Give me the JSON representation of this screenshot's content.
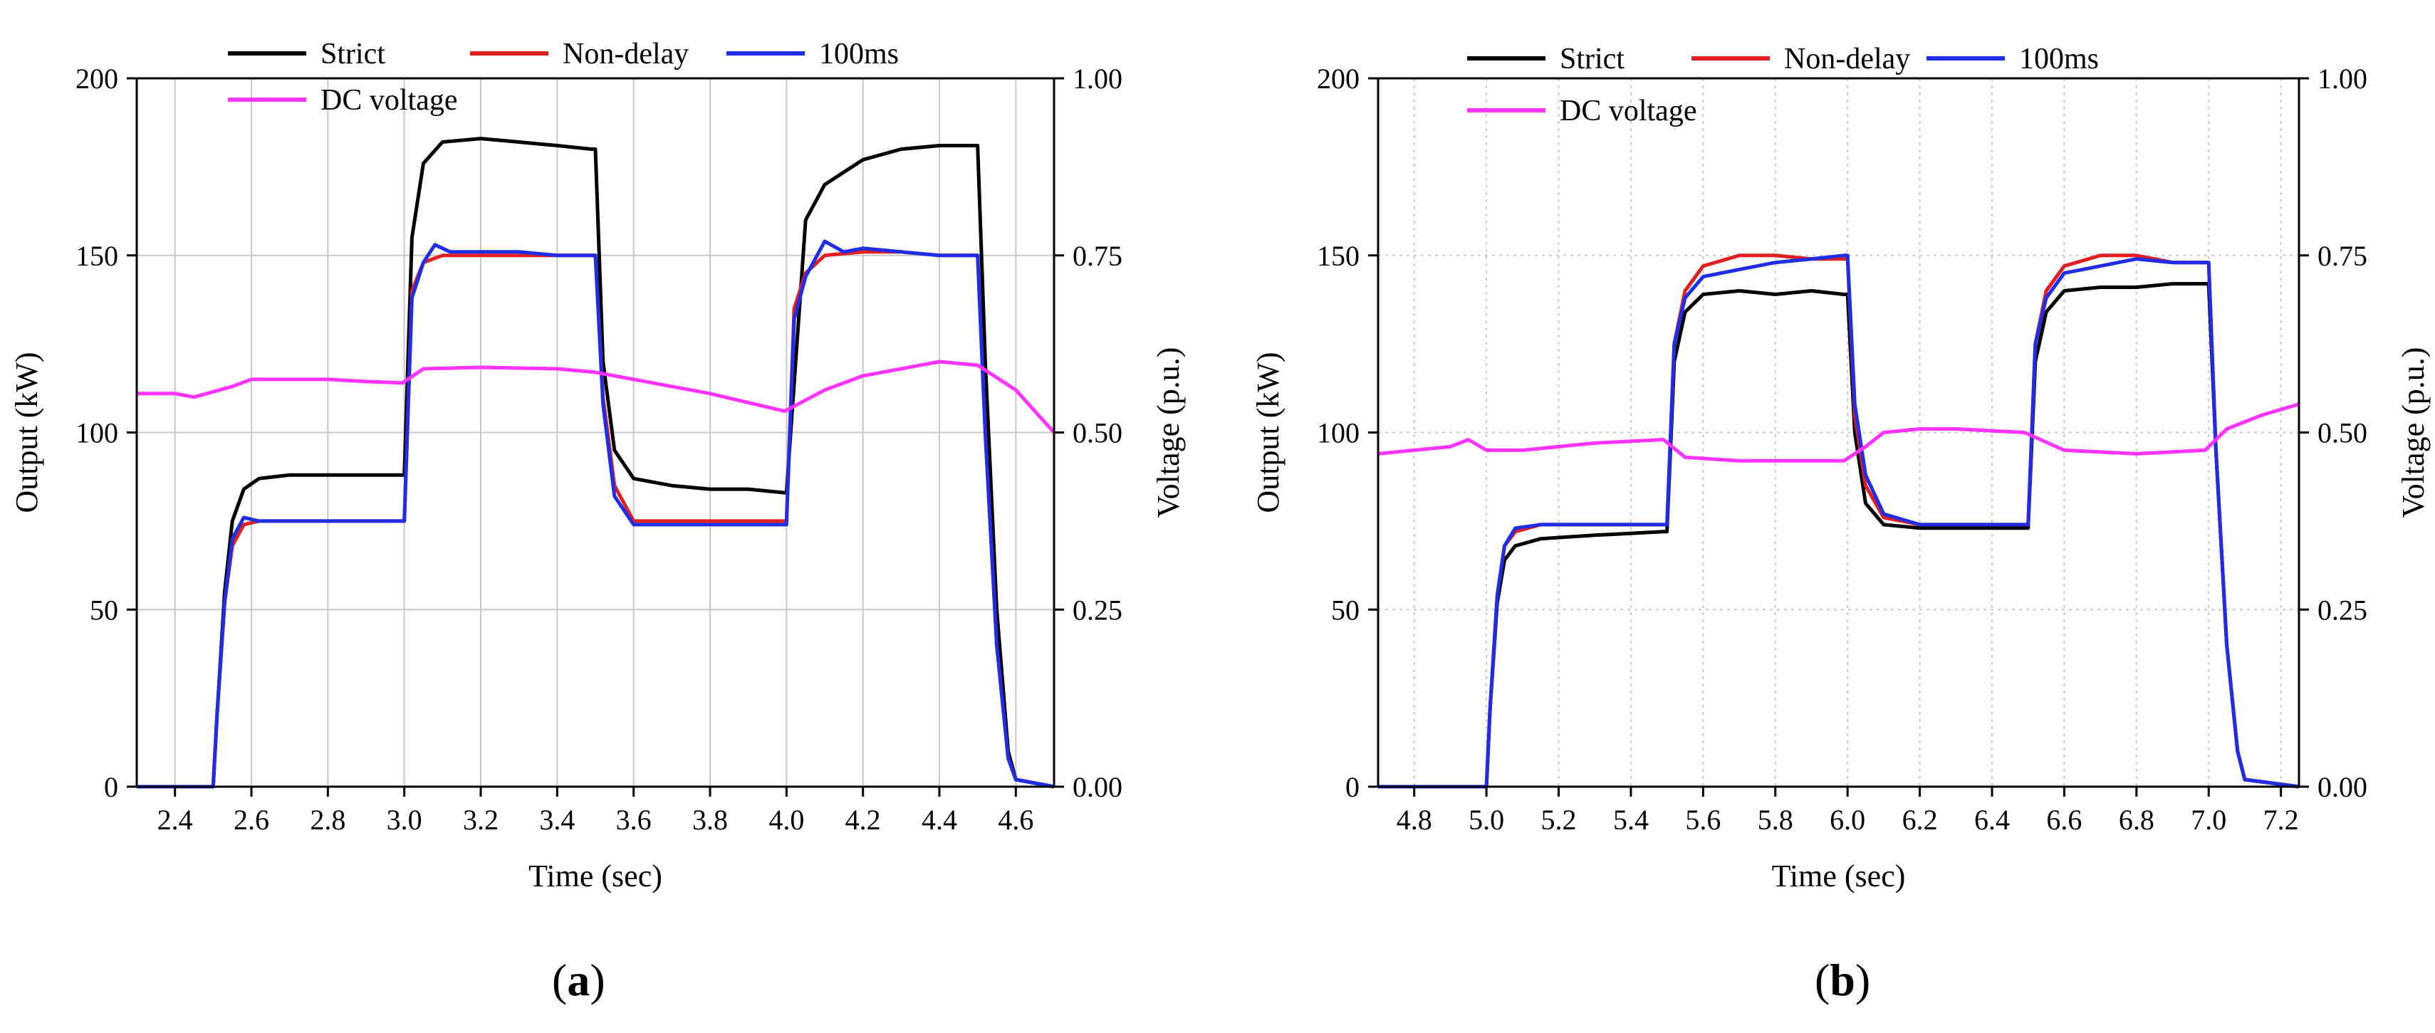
{
  "chart_data": [
    {
      "panel_label": "a",
      "type": "line",
      "xlabel": "Time (sec)",
      "ylabel": "Output (kW)",
      "ylabel_right": "Voltage (p.u.)",
      "xlim": [
        2.3,
        4.7
      ],
      "ylim": [
        0,
        200
      ],
      "ylim_right": [
        0,
        1.0
      ],
      "xticks": [
        2.4,
        2.6,
        2.8,
        3.0,
        3.2,
        3.4,
        3.6,
        3.8,
        4.0,
        4.2,
        4.4,
        4.6
      ],
      "xtick_labels": [
        "2.4",
        "2.6",
        "2.8",
        "3.0",
        "3.2",
        "3.4",
        "3.6",
        "3.8",
        "4.0",
        "4.2",
        "4.4",
        "4.6"
      ],
      "yticks": [
        0,
        50,
        100,
        150,
        200
      ],
      "ytick_labels": [
        "0",
        "50",
        "100",
        "150",
        "200"
      ],
      "yticks_right": [
        0,
        0.25,
        0.5,
        0.75,
        1.0
      ],
      "ytick_labels_right": [
        "0.00",
        "0.25",
        "0.50",
        "0.75",
        "1.00"
      ],
      "grid": "solid",
      "legend": [
        "Strict",
        "Non-delay",
        "100ms",
        "DC voltage"
      ],
      "series": [
        {
          "name": "Strict",
          "color": "#000000",
          "axis": "left",
          "x": [
            2.3,
            2.5,
            2.51,
            2.53,
            2.55,
            2.58,
            2.62,
            2.7,
            2.8,
            2.9,
            2.995,
            3.0,
            3.02,
            3.05,
            3.1,
            3.2,
            3.3,
            3.4,
            3.49,
            3.5,
            3.52,
            3.55,
            3.6,
            3.7,
            3.8,
            3.9,
            3.995,
            4.0,
            4.05,
            4.1,
            4.2,
            4.3,
            4.4,
            4.49,
            4.5,
            4.52,
            4.55,
            4.58,
            4.6,
            4.7
          ],
          "y": [
            0,
            0,
            20,
            55,
            75,
            84,
            87,
            88,
            88,
            88,
            88,
            88,
            155,
            176,
            182,
            183,
            182,
            181,
            180,
            180,
            120,
            95,
            87,
            85,
            84,
            84,
            83,
            83,
            160,
            170,
            177,
            180,
            181,
            181,
            181,
            120,
            50,
            10,
            2,
            0
          ]
        },
        {
          "name": "Non-delay",
          "color": "#e02020",
          "axis": "left",
          "x": [
            2.3,
            2.5,
            2.51,
            2.53,
            2.55,
            2.58,
            2.62,
            2.7,
            2.8,
            2.9,
            2.995,
            3.0,
            3.02,
            3.05,
            3.1,
            3.2,
            3.3,
            3.4,
            3.49,
            3.5,
            3.52,
            3.55,
            3.6,
            3.7,
            3.8,
            3.9,
            3.995,
            4.0,
            4.02,
            4.05,
            4.1,
            4.2,
            4.3,
            4.4,
            4.49,
            4.5,
            4.52,
            4.55,
            4.58,
            4.6,
            4.7
          ],
          "y": [
            0,
            0,
            20,
            52,
            68,
            74,
            75,
            75,
            75,
            75,
            75,
            75,
            140,
            148,
            150,
            150,
            150,
            150,
            150,
            150,
            110,
            85,
            75,
            75,
            75,
            75,
            75,
            75,
            135,
            145,
            150,
            151,
            151,
            150,
            150,
            150,
            100,
            40,
            8,
            2,
            0
          ]
        },
        {
          "name": "100ms",
          "color": "#1f2ee6",
          "axis": "left",
          "x": [
            2.3,
            2.5,
            2.51,
            2.53,
            2.55,
            2.58,
            2.62,
            2.7,
            2.8,
            2.9,
            2.995,
            3.0,
            3.02,
            3.05,
            3.08,
            3.12,
            3.2,
            3.3,
            3.4,
            3.49,
            3.5,
            3.52,
            3.55,
            3.6,
            3.7,
            3.8,
            3.9,
            3.995,
            4.0,
            4.02,
            4.05,
            4.1,
            4.15,
            4.2,
            4.3,
            4.4,
            4.49,
            4.5,
            4.52,
            4.55,
            4.58,
            4.6,
            4.7
          ],
          "y": [
            0,
            0,
            20,
            52,
            70,
            76,
            75,
            75,
            75,
            75,
            75,
            75,
            138,
            148,
            153,
            151,
            151,
            151,
            150,
            150,
            150,
            108,
            82,
            74,
            74,
            74,
            74,
            74,
            74,
            132,
            144,
            154,
            151,
            152,
            151,
            150,
            150,
            150,
            100,
            40,
            8,
            2,
            0
          ]
        },
        {
          "name": "DC voltage",
          "color": "#ff33ff",
          "axis": "right",
          "x": [
            2.3,
            2.4,
            2.45,
            2.55,
            2.6,
            2.7,
            2.8,
            2.9,
            2.995,
            3.05,
            3.2,
            3.4,
            3.5,
            3.6,
            3.8,
            3.995,
            4.1,
            4.2,
            4.3,
            4.4,
            4.5,
            4.6,
            4.7
          ],
          "y": [
            0.555,
            0.555,
            0.55,
            0.565,
            0.575,
            0.575,
            0.575,
            0.572,
            0.57,
            0.59,
            0.592,
            0.59,
            0.585,
            0.575,
            0.555,
            0.53,
            0.56,
            0.58,
            0.59,
            0.6,
            0.595,
            0.56,
            0.5
          ]
        }
      ]
    },
    {
      "panel_label": "b",
      "type": "line",
      "xlabel": "Time (sec)",
      "ylabel": "Output (kW)",
      "ylabel_right": "Voltage (p.u.)",
      "xlim": [
        4.7,
        7.25
      ],
      "ylim": [
        0,
        200
      ],
      "ylim_right": [
        0,
        1.0
      ],
      "xticks": [
        4.8,
        5.0,
        5.2,
        5.4,
        5.6,
        5.8,
        6.0,
        6.2,
        6.4,
        6.6,
        6.8,
        7.0,
        7.2
      ],
      "xtick_labels": [
        "4.8",
        "5.0",
        "5.2",
        "5.4",
        "5.6",
        "5.8",
        "6.0",
        "6.2",
        "6.4",
        "6.6",
        "6.8",
        "7.0",
        "7.2"
      ],
      "yticks": [
        0,
        50,
        100,
        150,
        200
      ],
      "ytick_labels": [
        "0",
        "50",
        "100",
        "150",
        "200"
      ],
      "yticks_right": [
        0,
        0.25,
        0.5,
        0.75,
        1.0
      ],
      "ytick_labels_right": [
        "0.00",
        "0.25",
        "0.50",
        "0.75",
        "1.00"
      ],
      "grid": "dotted",
      "legend": [
        "Strict",
        "Non-delay",
        "100ms",
        "DC voltage"
      ],
      "series": [
        {
          "name": "Strict",
          "color": "#000000",
          "axis": "left",
          "x": [
            4.7,
            5.0,
            5.01,
            5.03,
            5.05,
            5.08,
            5.15,
            5.3,
            5.49,
            5.5,
            5.52,
            5.55,
            5.6,
            5.7,
            5.8,
            5.9,
            5.99,
            6.0,
            6.02,
            6.05,
            6.1,
            6.2,
            6.3,
            6.49,
            6.5,
            6.52,
            6.55,
            6.6,
            6.7,
            6.8,
            6.9,
            6.99,
            7.0,
            7.02,
            7.05,
            7.08,
            7.1,
            7.25
          ],
          "y": [
            0,
            0,
            22,
            52,
            64,
            68,
            70,
            71,
            72,
            72,
            120,
            134,
            139,
            140,
            139,
            140,
            139,
            139,
            100,
            80,
            74,
            73,
            73,
            73,
            73,
            120,
            134,
            140,
            141,
            141,
            142,
            142,
            142,
            95,
            40,
            10,
            2,
            0
          ]
        },
        {
          "name": "Non-delay",
          "color": "#e02020",
          "axis": "left",
          "x": [
            4.7,
            5.0,
            5.01,
            5.03,
            5.05,
            5.08,
            5.15,
            5.3,
            5.49,
            5.5,
            5.52,
            5.55,
            5.6,
            5.7,
            5.8,
            5.9,
            5.99,
            6.0,
            6.02,
            6.05,
            6.1,
            6.2,
            6.3,
            6.49,
            6.5,
            6.52,
            6.55,
            6.6,
            6.7,
            6.8,
            6.9,
            6.99,
            7.0,
            7.02,
            7.05,
            7.08,
            7.1,
            7.25
          ],
          "y": [
            0,
            0,
            22,
            54,
            68,
            72,
            74,
            74,
            74,
            74,
            125,
            140,
            147,
            150,
            150,
            149,
            149,
            149,
            105,
            85,
            76,
            74,
            74,
            74,
            74,
            125,
            140,
            147,
            150,
            150,
            148,
            148,
            148,
            95,
            40,
            10,
            2,
            0
          ]
        },
        {
          "name": "100ms",
          "color": "#1f2ee6",
          "axis": "left",
          "x": [
            4.7,
            5.0,
            5.01,
            5.03,
            5.05,
            5.08,
            5.15,
            5.3,
            5.49,
            5.5,
            5.52,
            5.55,
            5.6,
            5.7,
            5.8,
            5.9,
            5.99,
            6.0,
            6.02,
            6.05,
            6.1,
            6.2,
            6.3,
            6.49,
            6.5,
            6.52,
            6.55,
            6.6,
            6.7,
            6.8,
            6.9,
            6.99,
            7.0,
            7.02,
            7.05,
            7.08,
            7.1,
            7.25
          ],
          "y": [
            0,
            0,
            22,
            54,
            68,
            73,
            74,
            74,
            74,
            74,
            125,
            138,
            144,
            146,
            148,
            149,
            150,
            150,
            108,
            88,
            77,
            74,
            74,
            74,
            74,
            125,
            138,
            145,
            147,
            149,
            148,
            148,
            148,
            95,
            40,
            10,
            2,
            0
          ]
        },
        {
          "name": "DC voltage",
          "color": "#ff33ff",
          "axis": "right",
          "x": [
            4.7,
            4.8,
            4.9,
            4.95,
            5.0,
            5.1,
            5.2,
            5.3,
            5.49,
            5.55,
            5.7,
            5.9,
            5.99,
            6.05,
            6.1,
            6.2,
            6.3,
            6.49,
            6.6,
            6.8,
            6.99,
            7.05,
            7.15,
            7.25
          ],
          "y": [
            0.47,
            0.475,
            0.48,
            0.49,
            0.475,
            0.475,
            0.48,
            0.485,
            0.49,
            0.465,
            0.46,
            0.46,
            0.46,
            0.48,
            0.5,
            0.505,
            0.505,
            0.5,
            0.475,
            0.47,
            0.475,
            0.505,
            0.525,
            0.54
          ]
        }
      ]
    }
  ]
}
